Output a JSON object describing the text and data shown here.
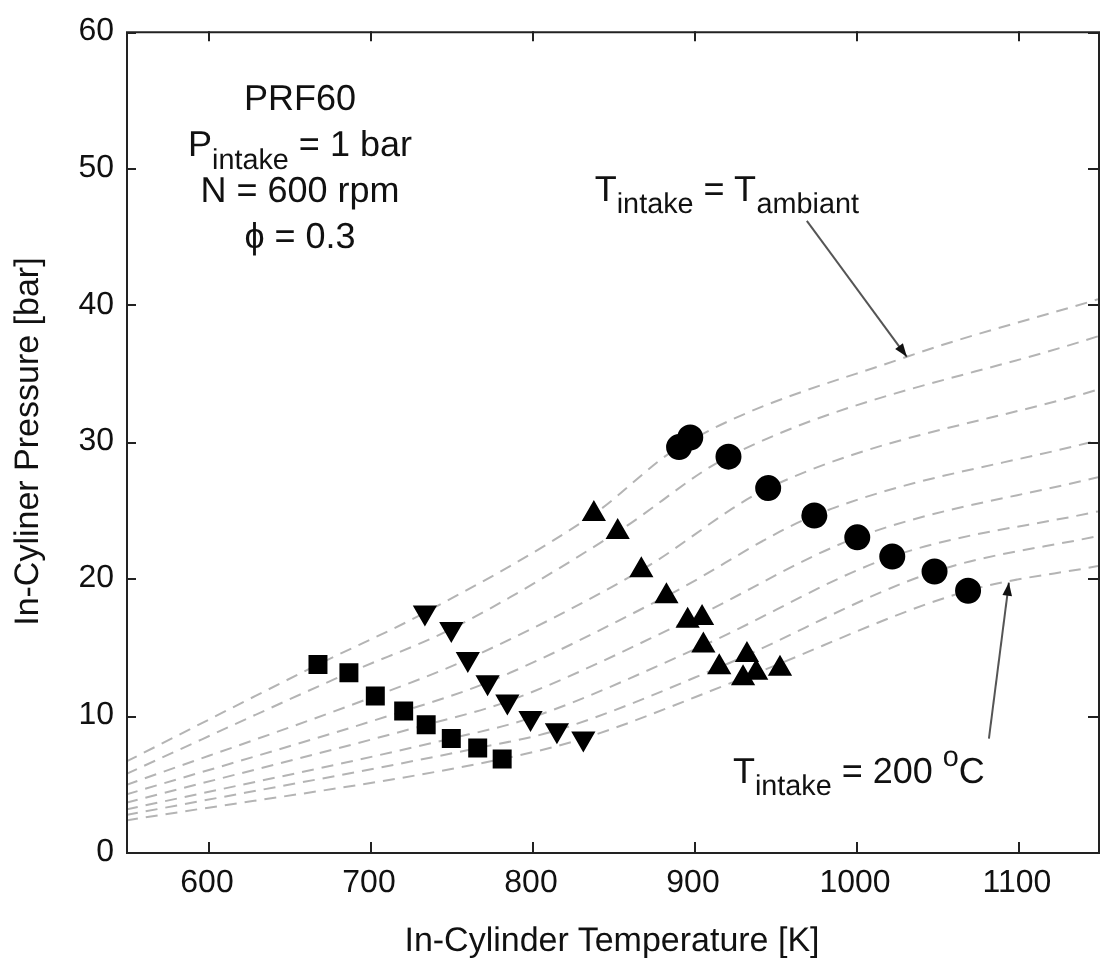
{
  "chart_data": {
    "type": "scatter",
    "xlabel": "In-Cylinder Temperature [K]",
    "ylabel": "In-Cyliner Pressure [bar]",
    "xlim": [
      550,
      1150
    ],
    "xticks": [
      600,
      700,
      800,
      900,
      1000,
      1100
    ],
    "ylim": [
      0,
      60
    ],
    "yticks": [
      0,
      10,
      20,
      30,
      40,
      50,
      60
    ],
    "grid": false,
    "legend": false,
    "series": [
      {
        "type": "line",
        "line_style": "dashed",
        "marker": "none",
        "color": "#b4b4b4",
        "x": [
          550,
          668.5,
          734.5,
          838.8,
          891.4,
          1032,
          1150
        ],
        "values": [
          6.6,
          13.7,
          17.5,
          24.7,
          29.6,
          36.2,
          40.4
        ]
      },
      {
        "type": "line",
        "line_style": "dashed",
        "marker": "none",
        "color": "#b4b4b4",
        "x": [
          550,
          687.6,
          750.8,
          853.5,
          921.9,
          1150
        ],
        "values": [
          5.7,
          13.1,
          16.3,
          23.4,
          28.9,
          37.7
        ]
      },
      {
        "type": "line",
        "line_style": "dashed",
        "marker": "none",
        "color": "#b4b4b4",
        "x": [
          550,
          703.9,
          761,
          868.1,
          946.4,
          1150
        ],
        "values": [
          4.9,
          11.4,
          14.1,
          20.6,
          26.6,
          33.8
        ]
      },
      {
        "type": "line",
        "line_style": "dashed",
        "marker": "none",
        "color": "#b4b4b4",
        "x": [
          550,
          721.4,
          773.2,
          883.6,
          974.9,
          1150
        ],
        "values": [
          4.2,
          10.3,
          12.4,
          18.7,
          24.6,
          30.1
        ]
      },
      {
        "type": "line",
        "line_style": "dashed",
        "marker": "none",
        "color": "#b4b4b4",
        "x": [
          550,
          735.3,
          785.4,
          896.7,
          1001.4,
          1150
        ],
        "values": [
          3.6,
          9.3,
          11.0,
          16.9,
          23.0,
          27.4
        ]
      },
      {
        "type": "line",
        "line_style": "dashed",
        "marker": "none",
        "color": "#b4b4b4",
        "x": [
          550,
          750.8,
          799.7,
          906.4,
          1023,
          1150
        ],
        "values": [
          3.1,
          8.3,
          9.8,
          15.1,
          21.6,
          24.9
        ]
      },
      {
        "type": "line",
        "line_style": "dashed",
        "marker": "none",
        "color": "#b4b4b4",
        "x": [
          550,
          767.1,
          816,
          916.2,
          1049.1,
          1150
        ],
        "values": [
          2.7,
          7.6,
          8.9,
          13.5,
          20.5,
          23.1
        ]
      },
      {
        "type": "line",
        "line_style": "dashed",
        "marker": "none",
        "color": "#b4b4b4",
        "x": [
          550,
          782.2,
          832.3,
          930.9,
          1069.8,
          1150
        ],
        "values": [
          2.3,
          6.8,
          8.3,
          12.7,
          19.1,
          20.9
        ]
      },
      {
        "type": "scatter",
        "marker": "square",
        "color": "#000000",
        "x": [
          668.5,
          687.6,
          703.9,
          721.4,
          735.3,
          750.8,
          767.1,
          782.2
        ],
        "values": [
          13.7,
          13.1,
          11.4,
          10.3,
          9.3,
          8.3,
          7.6,
          6.8
        ]
      },
      {
        "type": "scatter",
        "marker": "triangle_down",
        "color": "#000000",
        "x": [
          734.5,
          750.8,
          761,
          773.2,
          785.4,
          799.7,
          816,
          832.3
        ],
        "values": [
          17.5,
          16.3,
          14.1,
          12.4,
          11.0,
          9.8,
          8.9,
          8.3
        ]
      },
      {
        "type": "scatter",
        "marker": "triangle",
        "color": "#000000",
        "x": [
          838.8,
          853.5,
          868.1,
          883.6,
          896.7,
          905.6,
          906.4,
          916.2,
          933.3,
          930.9,
          939,
          953.7
        ],
        "values": [
          24.7,
          23.4,
          20.6,
          18.7,
          16.9,
          17.1,
          15.1,
          13.5,
          14.4,
          12.7,
          13.1,
          13.4
        ]
      },
      {
        "type": "scatter",
        "marker": "circle",
        "color": "#000000",
        "x": [
          891.4,
          898.3,
          921.9,
          946.4,
          974.9,
          1001.4,
          1023,
          1049.1,
          1069.8
        ],
        "values": [
          29.6,
          30.3,
          28.9,
          26.6,
          24.6,
          23.0,
          21.6,
          20.5,
          19.1
        ]
      }
    ],
    "annotations": [
      "PRF60",
      "P$_{intake}$ = 1 bar",
      "N = 600 rpm",
      "ϕ = 0.3",
      {
        "text": "T$_{intake}$ = T$_{ambiant}$",
        "x": 1032,
        "y": 36.2
      },
      {
        "text": "T$_{intake}$ = 200 $^{o}$C",
        "x": 1095,
        "y": 19.7
      }
    ]
  }
}
